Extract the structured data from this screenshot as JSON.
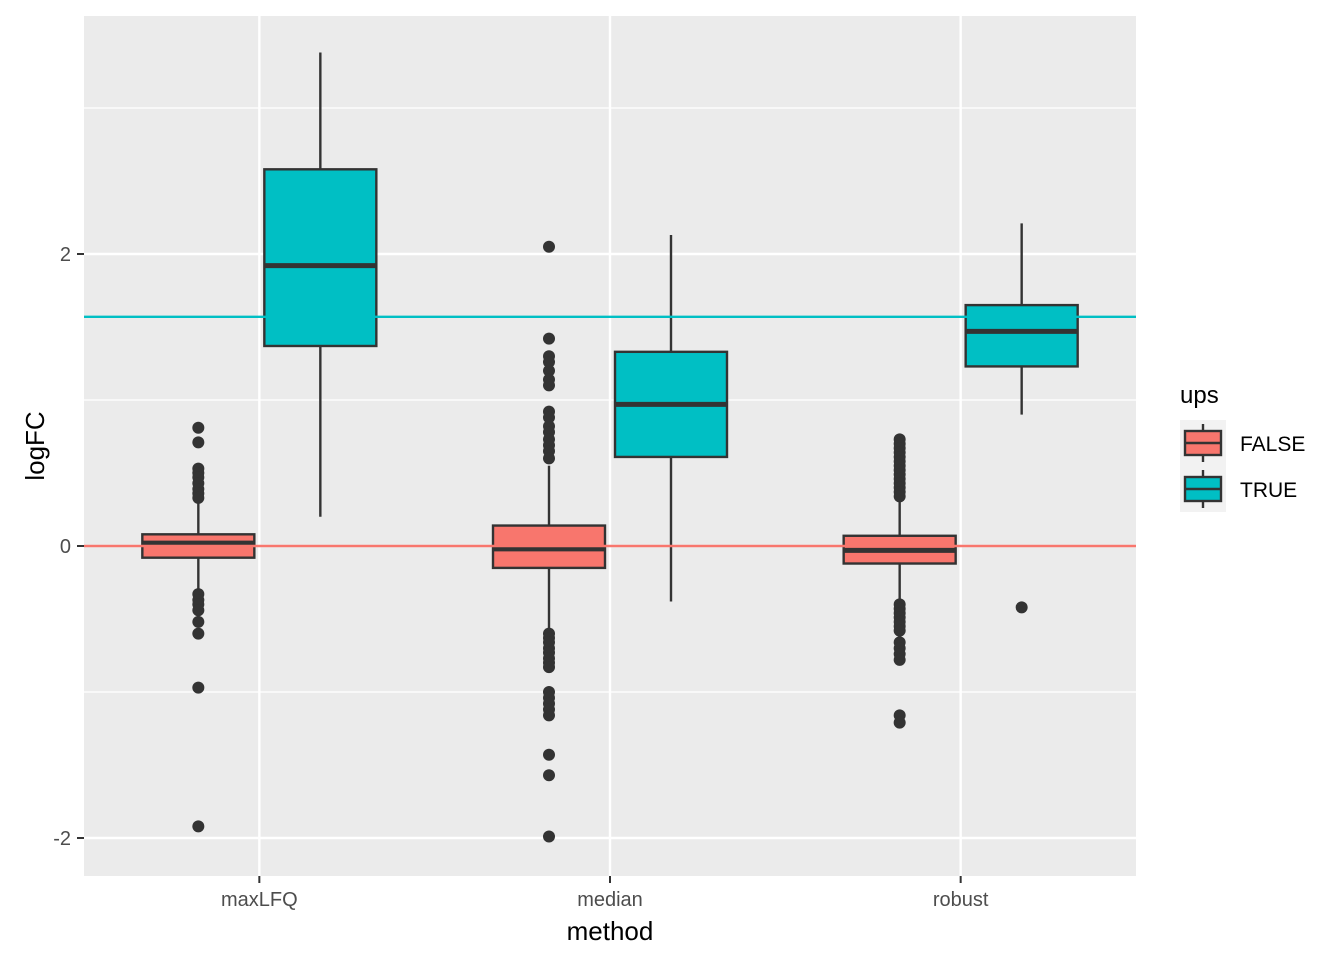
{
  "chart_data": {
    "type": "boxplot",
    "xlabel": "method",
    "ylabel": "logFC",
    "categories": [
      "maxLFQ",
      "median",
      "robust"
    ],
    "ylim": [
      -2.1,
      3.5
    ],
    "yticks": [
      -2,
      0,
      2
    ],
    "ytick_labels": [
      "-2",
      "0",
      "2"
    ],
    "grid": true,
    "legend": {
      "title": "ups",
      "position": "right"
    },
    "hlines": [
      {
        "y": 0,
        "color": "#F8766D"
      },
      {
        "y": 1.57,
        "color": "#00BFC4"
      }
    ],
    "series": [
      {
        "name": "FALSE",
        "color": "#F8766D",
        "boxes": [
          {
            "category": "maxLFQ",
            "q1": -0.08,
            "median": 0.02,
            "q3": 0.08,
            "whisker_low": -0.3,
            "whisker_high": 0.3,
            "outliers": [
              0.81,
              0.71,
              0.53,
              0.5,
              0.47,
              0.43,
              0.39,
              0.36,
              0.33,
              -0.33,
              -0.37,
              -0.4,
              -0.44,
              -0.52,
              -0.6,
              -0.97,
              -1.92
            ]
          },
          {
            "category": "median",
            "q1": -0.15,
            "median": -0.02,
            "q3": 0.14,
            "whisker_low": -0.58,
            "whisker_high": 0.55,
            "outliers": [
              2.05,
              1.42,
              1.3,
              1.26,
              1.2,
              1.14,
              1.1,
              0.92,
              0.88,
              0.82,
              0.78,
              0.73,
              0.69,
              0.65,
              0.6,
              -0.6,
              -0.63,
              -0.66,
              -0.7,
              -0.73,
              -0.77,
              -0.8,
              -0.83,
              -1.0,
              -1.04,
              -1.08,
              -1.12,
              -1.16,
              -1.43,
              -1.57,
              -1.99
            ]
          },
          {
            "category": "robust",
            "q1": -0.12,
            "median": -0.03,
            "q3": 0.07,
            "whisker_low": -0.38,
            "whisker_high": 0.33,
            "outliers": [
              0.73,
              0.7,
              0.67,
              0.64,
              0.61,
              0.58,
              0.55,
              0.52,
              0.49,
              0.46,
              0.43,
              0.4,
              0.37,
              0.34,
              -0.4,
              -0.43,
              -0.46,
              -0.49,
              -0.52,
              -0.55,
              -0.58,
              -0.66,
              -0.7,
              -0.74,
              -0.78,
              -1.16,
              -1.21
            ]
          }
        ]
      },
      {
        "name": "TRUE",
        "color": "#00BFC4",
        "boxes": [
          {
            "category": "maxLFQ",
            "q1": 1.37,
            "median": 1.92,
            "q3": 2.58,
            "whisker_low": 0.2,
            "whisker_high": 3.38,
            "outliers": []
          },
          {
            "category": "median",
            "q1": 0.61,
            "median": 0.97,
            "q3": 1.33,
            "whisker_low": -0.38,
            "whisker_high": 2.13,
            "outliers": []
          },
          {
            "category": "robust",
            "q1": 1.23,
            "median": 1.47,
            "q3": 1.65,
            "whisker_low": 0.9,
            "whisker_high": 2.21,
            "outliers": [
              -0.42
            ]
          }
        ]
      }
    ]
  }
}
